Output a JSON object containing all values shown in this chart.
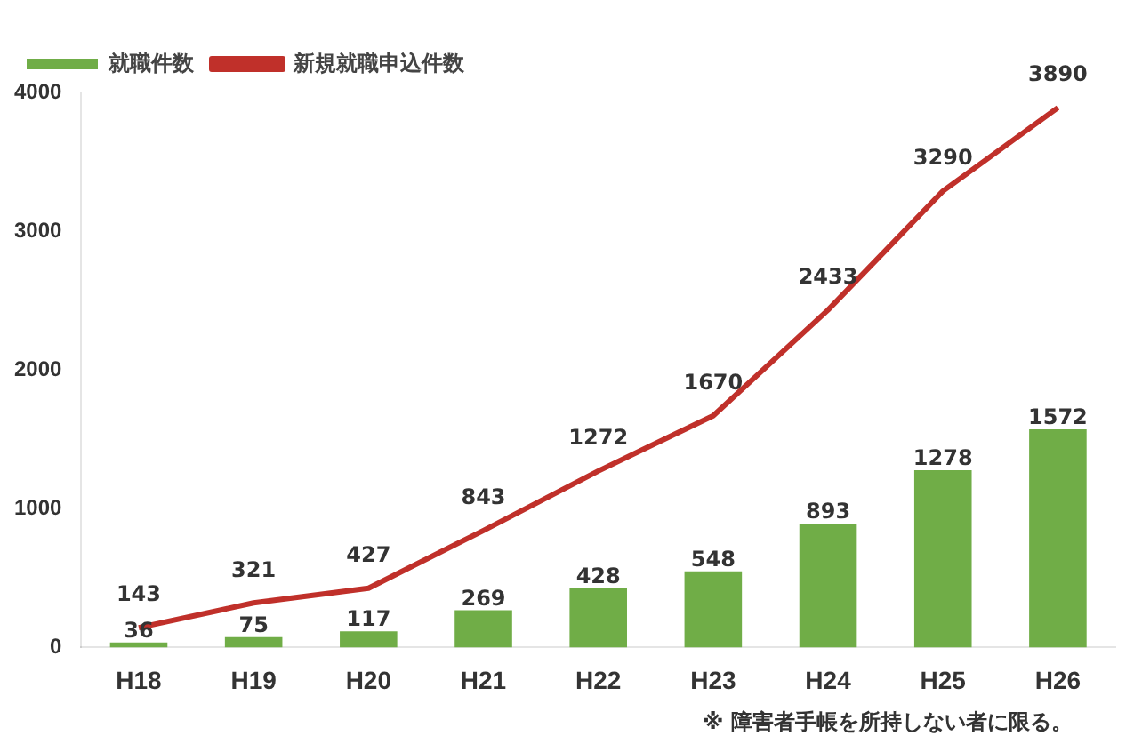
{
  "chart_data": {
    "type": "bar",
    "categories": [
      "H18",
      "H19",
      "H20",
      "H21",
      "H22",
      "H23",
      "H24",
      "H25",
      "H26"
    ],
    "series": [
      {
        "name": "就職件数",
        "color": "#70ad47",
        "values": [
          36,
          75,
          117,
          269,
          428,
          548,
          893,
          1278,
          1572
        ]
      },
      {
        "name": "新規就職申込件数",
        "type": "line",
        "color": "#c0302a",
        "values": [
          143,
          321,
          427,
          843,
          1272,
          1670,
          2433,
          3290,
          3890
        ]
      }
    ],
    "ylim": [
      0,
      4000
    ],
    "yticks": [
      0,
      1000,
      2000,
      3000,
      4000
    ],
    "grid": false,
    "legend": "top left",
    "marker": "none",
    "data_labels": true,
    "annotations": [
      "※ 障害者手帳を所持しない者に限る。"
    ]
  }
}
